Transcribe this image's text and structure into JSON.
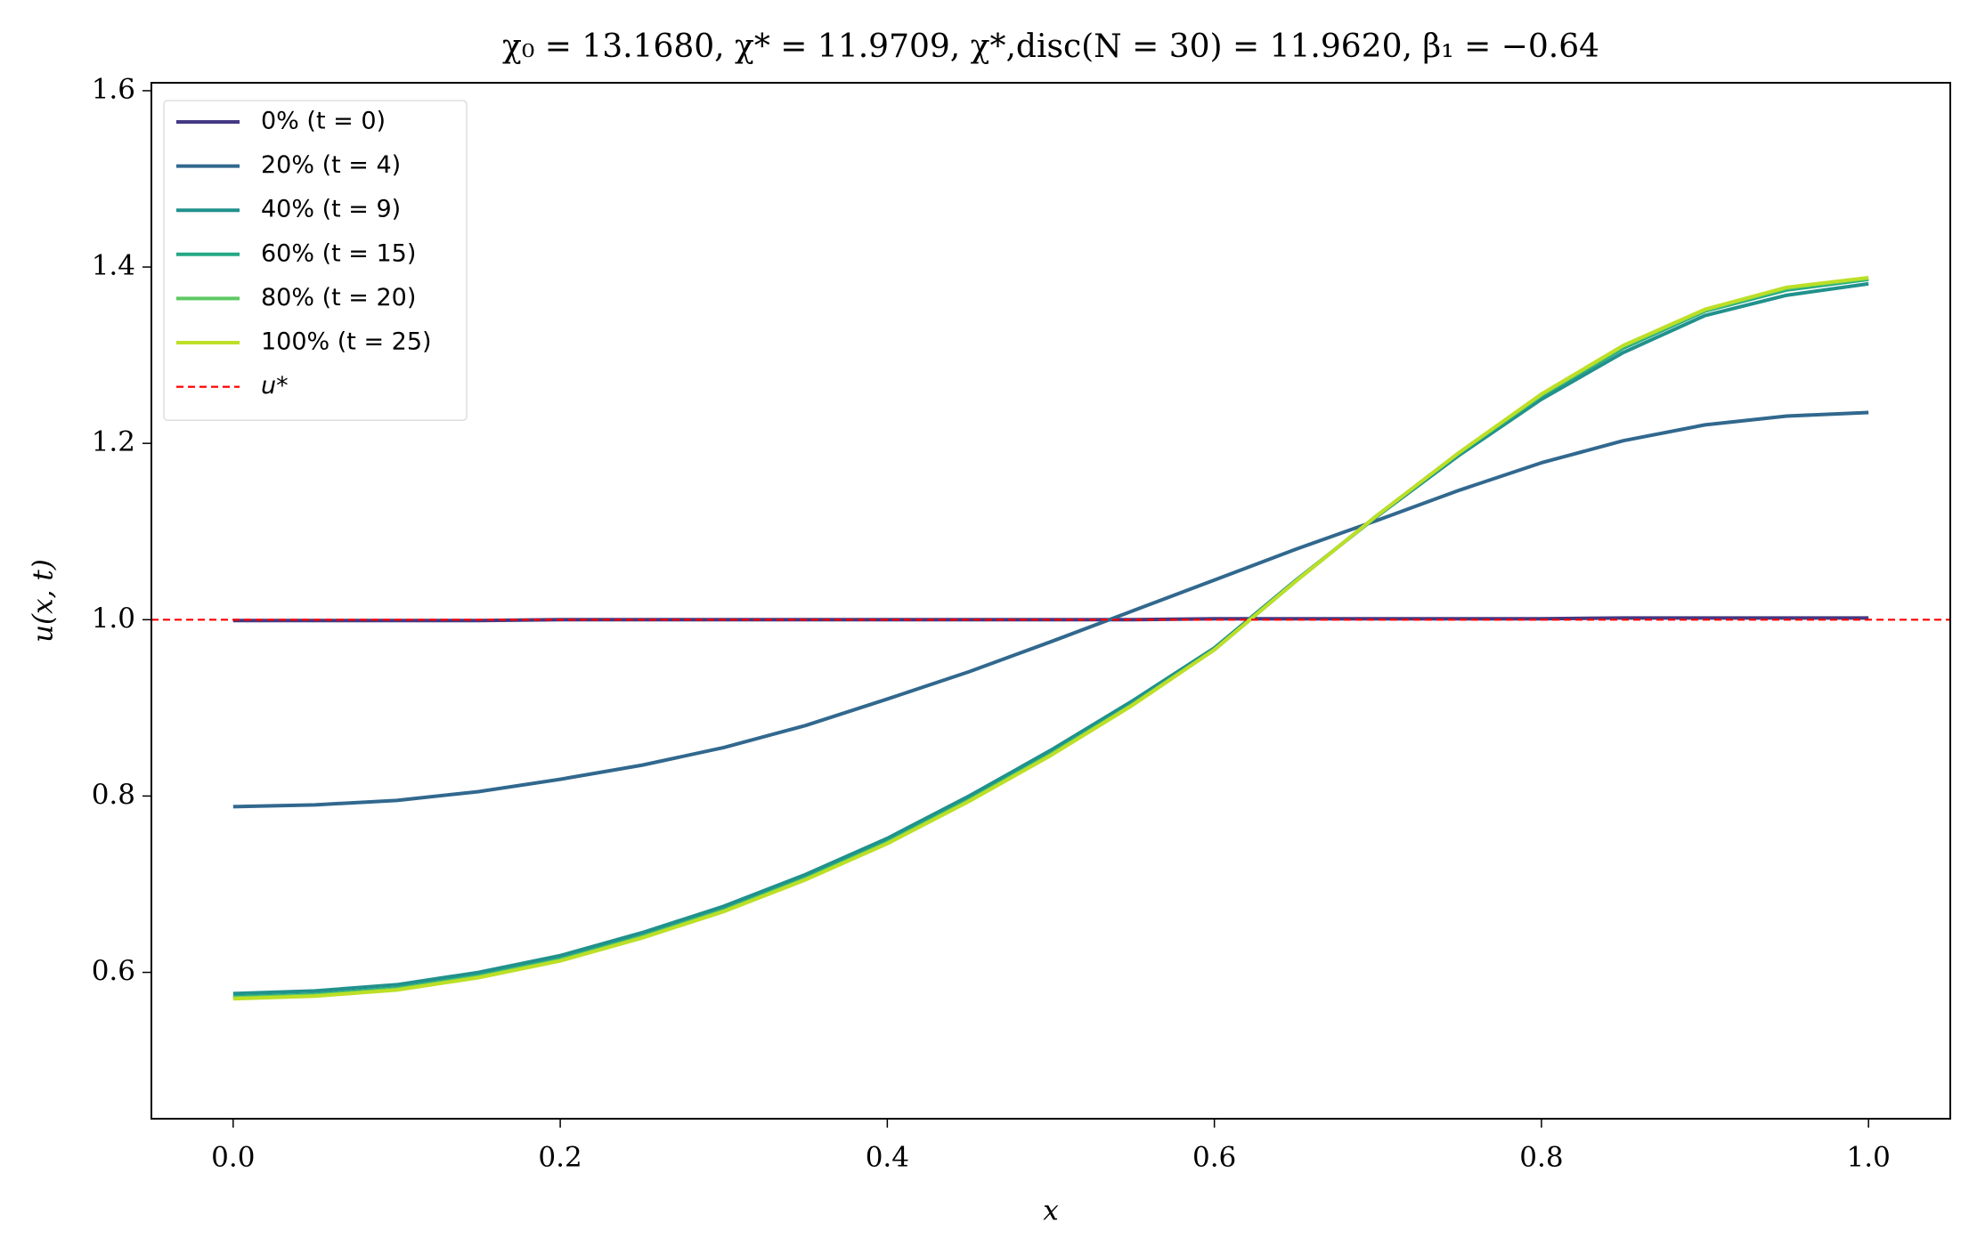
{
  "chart_data": {
    "type": "line",
    "title": "χ₀ = 13.1680,  χ* = 11.9709,  χ*,disc(N = 30) = 11.9620,  β₁ = −0.64",
    "x_label": "x",
    "y_label": "u(x, t)",
    "x": [
      0,
      0.05,
      0.1,
      0.15,
      0.2,
      0.25,
      0.3,
      0.35,
      0.4,
      0.45,
      0.5,
      0.55,
      0.6,
      0.65,
      0.7,
      0.75,
      0.8,
      0.85,
      0.9,
      0.95,
      1.0
    ],
    "series": [
      {
        "name": "0% (t = 0)",
        "color": "#443983",
        "values": [
          0.999,
          0.999,
          0.999,
          0.999,
          1.0,
          1.0,
          1.0,
          1.0,
          1.0,
          1.0,
          1.0,
          1.0,
          1.001,
          1.001,
          1.001,
          1.001,
          1.001,
          1.002,
          1.002,
          1.002,
          1.002
        ]
      },
      {
        "name": "20% (t = 4)",
        "color": "#31688e",
        "values": [
          0.788,
          0.79,
          0.795,
          0.805,
          0.819,
          0.835,
          0.855,
          0.88,
          0.91,
          0.941,
          0.975,
          1.01,
          1.045,
          1.08,
          1.113,
          1.147,
          1.178,
          1.203,
          1.221,
          1.231,
          1.235
        ]
      },
      {
        "name": "40% (t = 9)",
        "color": "#21918c",
        "values": [
          0.576,
          0.579,
          0.586,
          0.6,
          0.619,
          0.645,
          0.675,
          0.711,
          0.752,
          0.8,
          0.852,
          0.908,
          0.968,
          1.045,
          1.118,
          1.187,
          1.25,
          1.303,
          1.345,
          1.368,
          1.381
        ]
      },
      {
        "name": "60% (t = 15)",
        "color": "#22a884",
        "values": [
          0.572,
          0.575,
          0.582,
          0.596,
          0.615,
          0.641,
          0.671,
          0.707,
          0.748,
          0.796,
          0.848,
          0.904,
          0.966,
          1.044,
          1.119,
          1.189,
          1.254,
          1.308,
          1.35,
          1.374,
          1.386
        ]
      },
      {
        "name": "80% (t = 20)",
        "color": "#5ec962",
        "values": [
          0.571,
          0.574,
          0.581,
          0.595,
          0.614,
          0.64,
          0.67,
          0.706,
          0.747,
          0.795,
          0.847,
          0.904,
          0.966,
          1.044,
          1.119,
          1.19,
          1.255,
          1.31,
          1.351,
          1.376,
          1.387
        ]
      },
      {
        "name": "100% (t = 25)",
        "color": "#bddf26",
        "values": [
          0.57,
          0.573,
          0.58,
          0.594,
          0.613,
          0.639,
          0.669,
          0.705,
          0.746,
          0.794,
          0.846,
          0.903,
          0.966,
          1.044,
          1.119,
          1.19,
          1.256,
          1.311,
          1.352,
          1.377,
          1.388
        ]
      }
    ],
    "reference_line": {
      "name": "u*",
      "value": 1.0,
      "color": "#ff0000"
    },
    "xlim": [
      -0.05,
      1.05
    ],
    "ylim": [
      0.434,
      1.609
    ],
    "xticks": [
      {
        "value": 0,
        "label": "0.0"
      },
      0.2,
      0.4,
      0.6,
      0.8,
      {
        "value": 1,
        "label": "1.0"
      }
    ],
    "yticks": [
      0.6,
      0.8,
      {
        "value": 1,
        "label": "1.0"
      },
      1.2,
      1.4,
      1.6
    ],
    "legend": "upper left"
  }
}
